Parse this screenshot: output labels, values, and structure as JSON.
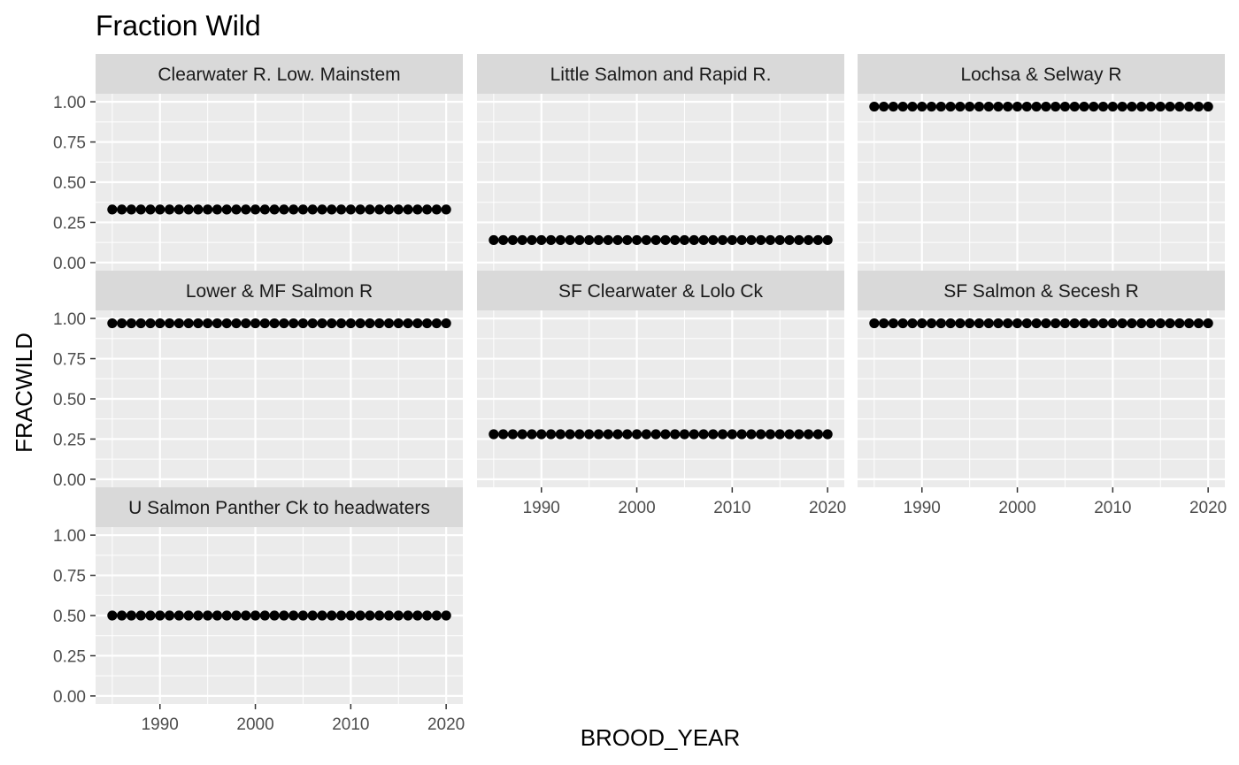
{
  "chart_data": {
    "type": "scatter",
    "title": "Fraction Wild",
    "xlabel": "BROOD_YEAR",
    "ylabel": "FRACWILD",
    "x": [
      1985,
      1986,
      1987,
      1988,
      1989,
      1990,
      1991,
      1992,
      1993,
      1994,
      1995,
      1996,
      1997,
      1998,
      1999,
      2000,
      2001,
      2002,
      2003,
      2004,
      2005,
      2006,
      2007,
      2008,
      2009,
      2010,
      2011,
      2012,
      2013,
      2014,
      2015,
      2016,
      2017,
      2018,
      2019,
      2020
    ],
    "xlim": [
      1983.25,
      2021.75
    ],
    "ylim": [
      -0.05,
      1.05
    ],
    "x_ticks": [
      1990,
      2000,
      2010,
      2020
    ],
    "y_ticks": [
      0,
      0.25,
      0.5,
      0.75,
      1
    ],
    "x_tick_labels": [
      "1990",
      "2000",
      "2010",
      "2020"
    ],
    "y_tick_labels": [
      "0.00",
      "0.25",
      "0.50",
      "0.75",
      "1.00"
    ],
    "grid": true,
    "point_color": "#000000",
    "panel_background": "#ebebeb",
    "strip_background": "#d9d9d9",
    "panels": [
      {
        "name": "Clearwater R. Low. Mainstem",
        "value": 0.33
      },
      {
        "name": "Little Salmon and Rapid R.",
        "value": 0.14
      },
      {
        "name": "Lochsa & Selway R",
        "value": 0.97
      },
      {
        "name": "Lower & MF Salmon R",
        "value": 0.97
      },
      {
        "name": "SF Clearwater & Lolo Ck",
        "value": 0.28
      },
      {
        "name": "SF Salmon & Secesh R",
        "value": 0.97
      },
      {
        "name": "U Salmon Panther Ck to headwaters",
        "value": 0.5
      }
    ]
  }
}
